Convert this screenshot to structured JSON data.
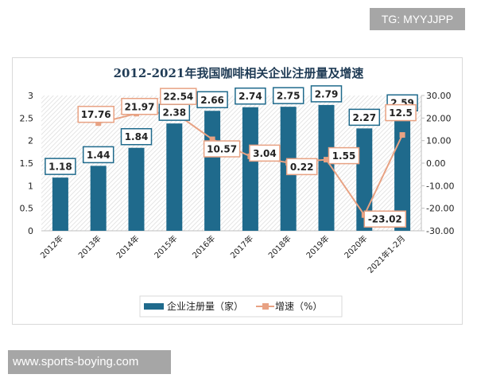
{
  "watermarks": {
    "top": "TG: MYYJJPP",
    "bottom": "www.sports-boying.com"
  },
  "chart_data": {
    "type": "bar+line",
    "title": "2012-2021年我国咖啡相关企业注册量及增速",
    "categories": [
      "2012年",
      "2013年",
      "2014年",
      "2015年",
      "2016年",
      "2017年",
      "2018年",
      "2019年",
      "2020年",
      "2021年1-2月"
    ],
    "series": [
      {
        "name": "企业注册量（家）",
        "type": "bar",
        "axis": "left",
        "color": "#1f6a8c",
        "values": [
          1.18,
          1.44,
          1.84,
          2.38,
          2.66,
          2.74,
          2.75,
          2.79,
          2.27,
          2.59
        ]
      },
      {
        "name": "增速（%）",
        "type": "line",
        "axis": "right",
        "color": "#e8a283",
        "values": [
          null,
          17.76,
          21.97,
          22.54,
          10.57,
          3.04,
          0.22,
          1.55,
          -23.02,
          12.5
        ]
      }
    ],
    "y_left": {
      "ylim": [
        0,
        3
      ],
      "ticks": [
        "0",
        "0.5",
        "1",
        "1.5",
        "2",
        "2.5",
        "3"
      ]
    },
    "y_right": {
      "ylim": [
        -30,
        30
      ],
      "ticks": [
        "-30.00",
        "-20.00",
        "-10.00",
        "0.00",
        "10.00",
        "20.00",
        "30.00"
      ]
    },
    "legend_position": "bottom",
    "grid": false
  }
}
